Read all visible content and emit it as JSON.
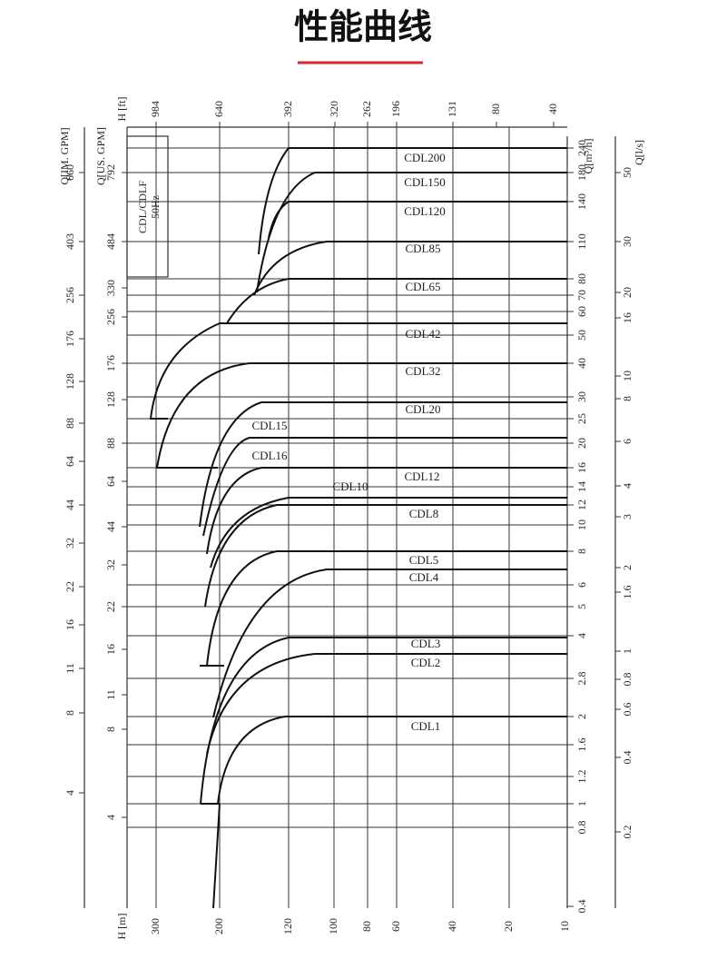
{
  "header": {
    "title": "性能曲线"
  },
  "diagram": {
    "box_label": "CDL/CDLF\n50Hz",
    "axis_im_gpm": {
      "label": "Q[IM. GPM]",
      "ticks": [
        "660",
        "403",
        "256",
        "176",
        "128",
        "88",
        "64",
        "44",
        "32",
        "22",
        "16",
        "11",
        "8",
        "4"
      ]
    },
    "axis_us_gpm": {
      "label": "Q[US. GPM]",
      "ticks": [
        "792",
        "484",
        "330",
        "256",
        "176",
        "128",
        "88",
        "64",
        "44",
        "32",
        "22",
        "16",
        "11",
        "8",
        "4"
      ]
    },
    "axis_h_ft": {
      "label": "H [ft]",
      "ticks": [
        "984",
        "640",
        "392",
        "320",
        "262",
        "196",
        "131",
        "80",
        "40"
      ]
    },
    "axis_h_m": {
      "label": "H [m]",
      "ticks": [
        "300",
        "200",
        "120",
        "100",
        "80",
        "60",
        "40",
        "20",
        "10"
      ]
    },
    "axis_m3h": {
      "label": "Q[m³/h]",
      "ticks": [
        "240",
        "180",
        "140",
        "110",
        "80",
        "70",
        "60",
        "50",
        "40",
        "30",
        "25",
        "20",
        "16",
        "14",
        "12",
        "10",
        "8",
        "6",
        "5",
        "4",
        "2.8",
        "2",
        "1.6",
        "1.2",
        "1",
        "0.8",
        "0.4"
      ]
    },
    "axis_ls": {
      "label": "Q[l/s]",
      "ticks": [
        "50",
        "30",
        "20",
        "16",
        "10",
        "8",
        "6",
        "4",
        "3",
        "2",
        "1.6",
        "1",
        "0.8",
        "0.6",
        "0.4",
        "0.2"
      ]
    },
    "models": [
      "CDL200",
      "CDL150",
      "CDL120",
      "CDL85",
      "CDL65",
      "CDL42",
      "CDL32",
      "CDL20",
      "CDL15",
      "CDL16",
      "CDL10",
      "CDL12",
      "CDL8",
      "CDL5",
      "CDL4",
      "CDL3",
      "CDL2",
      "CDL1"
    ]
  }
}
